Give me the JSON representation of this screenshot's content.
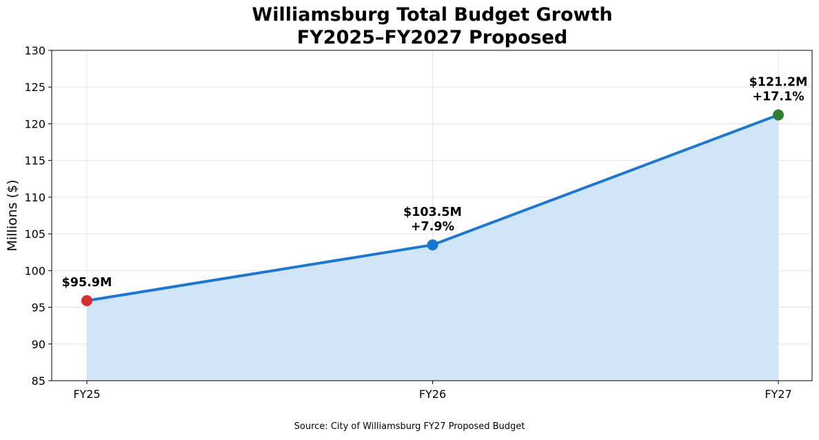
{
  "chart_data": {
    "type": "area",
    "title": [
      "Williamsburg Total Budget Growth",
      "FY2025–FY2027 Proposed"
    ],
    "categories": [
      "FY25",
      "FY26",
      "FY27"
    ],
    "values": [
      95.9,
      103.5,
      121.2
    ],
    "point_colors": [
      "#d32f2f",
      "#1976d2",
      "#2e7d32"
    ],
    "data_labels": [
      [
        "$95.9M"
      ],
      [
        "$103.5M",
        "+7.9%"
      ],
      [
        "$121.2M",
        "+17.1%"
      ]
    ],
    "xlabel": "",
    "ylabel": "Millions ($)",
    "ylim": [
      85,
      130
    ],
    "yticks": [
      85,
      90,
      95,
      100,
      105,
      110,
      115,
      120,
      125,
      130
    ],
    "grid": true,
    "line_color": "#1f77d0",
    "fill_color": "#d0e6f8"
  },
  "source": "Source: City of Williamsburg FY27 Proposed Budget"
}
